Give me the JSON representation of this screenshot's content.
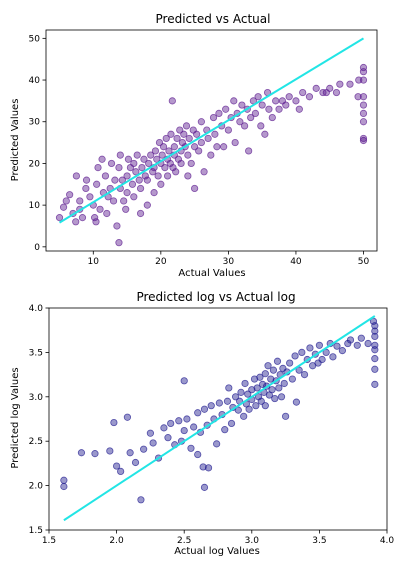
{
  "chart_data": [
    {
      "type": "scatter",
      "title": "Predicted vs Actual",
      "xlabel": "Actual Values",
      "ylabel": "Predicted Values",
      "xlim": [
        3,
        52
      ],
      "ylim": [
        -1,
        52
      ],
      "xticks": [
        10,
        20,
        30,
        40,
        50
      ],
      "yticks": [
        0,
        10,
        20,
        30,
        40,
        50
      ],
      "point_color": "#5b1a8f",
      "fit_color": "#22e5e5",
      "fit_line": {
        "x": [
          5,
          50
        ],
        "y": [
          5.8,
          50
        ]
      },
      "points": [
        [
          5,
          7
        ],
        [
          5.6,
          9.5
        ],
        [
          6,
          11
        ],
        [
          6.5,
          12.5
        ],
        [
          7,
          8
        ],
        [
          7.4,
          6
        ],
        [
          7.5,
          17
        ],
        [
          8,
          11
        ],
        [
          8,
          9
        ],
        [
          8.4,
          7
        ],
        [
          8.9,
          14
        ],
        [
          9,
          16
        ],
        [
          9.5,
          12
        ],
        [
          10,
          10
        ],
        [
          10.2,
          7
        ],
        [
          10.4,
          6
        ],
        [
          10.5,
          15
        ],
        [
          10.7,
          19
        ],
        [
          11,
          9
        ],
        [
          11.3,
          21
        ],
        [
          11.5,
          13
        ],
        [
          11.8,
          17
        ],
        [
          12,
          8
        ],
        [
          12.2,
          12
        ],
        [
          12.5,
          14
        ],
        [
          12.7,
          20
        ],
        [
          13,
          11
        ],
        [
          13.2,
          16
        ],
        [
          13.5,
          5
        ],
        [
          13.8,
          19
        ],
        [
          13.8,
          1
        ],
        [
          14,
          14
        ],
        [
          14,
          22
        ],
        [
          14.3,
          16
        ],
        [
          14.5,
          11
        ],
        [
          14.8,
          9
        ],
        [
          15,
          13
        ],
        [
          15,
          17
        ],
        [
          15.2,
          21
        ],
        [
          15.5,
          19
        ],
        [
          15.8,
          15
        ],
        [
          16,
          12
        ],
        [
          16,
          20
        ],
        [
          16.3,
          18
        ],
        [
          16.5,
          22
        ],
        [
          16.8,
          16
        ],
        [
          17,
          8
        ],
        [
          17,
          14
        ],
        [
          17.2,
          19
        ],
        [
          17.5,
          21
        ],
        [
          17.7,
          17
        ],
        [
          18,
          10
        ],
        [
          18,
          16
        ],
        [
          18.2,
          20
        ],
        [
          18.5,
          22
        ],
        [
          18.8,
          18
        ],
        [
          19,
          13
        ],
        [
          19,
          19
        ],
        [
          19.2,
          23
        ],
        [
          19.4,
          21
        ],
        [
          19.6,
          17
        ],
        [
          19.8,
          25
        ],
        [
          20,
          15
        ],
        [
          20,
          20
        ],
        [
          20.2,
          22
        ],
        [
          20.4,
          24
        ],
        [
          20.6,
          19
        ],
        [
          20.8,
          26
        ],
        [
          21,
          17
        ],
        [
          21,
          21
        ],
        [
          21.2,
          23
        ],
        [
          21.4,
          20
        ],
        [
          21.5,
          27
        ],
        [
          21.7,
          35
        ],
        [
          21.8,
          19
        ],
        [
          22,
          22
        ],
        [
          22,
          24
        ],
        [
          22.2,
          18
        ],
        [
          22.4,
          26
        ],
        [
          22.6,
          21
        ],
        [
          22.8,
          28
        ],
        [
          23,
          23
        ],
        [
          23,
          20
        ],
        [
          23.2,
          25
        ],
        [
          23.4,
          27
        ],
        [
          23.6,
          24
        ],
        [
          23.8,
          29
        ],
        [
          24,
          17
        ],
        [
          24,
          22
        ],
        [
          24.2,
          26
        ],
        [
          24.5,
          20
        ],
        [
          24.8,
          28
        ],
        [
          25,
          24
        ],
        [
          25,
          14
        ],
        [
          25.3,
          27
        ],
        [
          25.6,
          23
        ],
        [
          26,
          30
        ],
        [
          26,
          25
        ],
        [
          26.4,
          18
        ],
        [
          26.8,
          28
        ],
        [
          27,
          26
        ],
        [
          27.4,
          22
        ],
        [
          27.8,
          31
        ],
        [
          28,
          27
        ],
        [
          28.3,
          24
        ],
        [
          28.6,
          32
        ],
        [
          29,
          29
        ],
        [
          29.3,
          24
        ],
        [
          29.6,
          33
        ],
        [
          30,
          28
        ],
        [
          30.4,
          31
        ],
        [
          30.8,
          35
        ],
        [
          31,
          25
        ],
        [
          31.3,
          32
        ],
        [
          31.7,
          30
        ],
        [
          32,
          34
        ],
        [
          32.4,
          29
        ],
        [
          32.8,
          33
        ],
        [
          33,
          23
        ],
        [
          33.3,
          31
        ],
        [
          33.7,
          35
        ],
        [
          34,
          32
        ],
        [
          34.4,
          36
        ],
        [
          34.8,
          29
        ],
        [
          35,
          34
        ],
        [
          35.4,
          27
        ],
        [
          35.8,
          37
        ],
        [
          36,
          33
        ],
        [
          36.5,
          31
        ],
        [
          37,
          35
        ],
        [
          37.5,
          33
        ],
        [
          38,
          35
        ],
        [
          38.5,
          34
        ],
        [
          39,
          36
        ],
        [
          40,
          35
        ],
        [
          40.5,
          33
        ],
        [
          41,
          37
        ],
        [
          42,
          36
        ],
        [
          43,
          38
        ],
        [
          44,
          37
        ],
        [
          44.5,
          37
        ],
        [
          45,
          38
        ],
        [
          46,
          37
        ],
        [
          46.5,
          39
        ],
        [
          48,
          39
        ],
        [
          49.2,
          36
        ],
        [
          49.3,
          40
        ],
        [
          50,
          43
        ],
        [
          50,
          42
        ],
        [
          50,
          40
        ],
        [
          50,
          36
        ],
        [
          50,
          34
        ],
        [
          50,
          32
        ],
        [
          50,
          30
        ],
        [
          50,
          26
        ],
        [
          50,
          25.5
        ]
      ]
    },
    {
      "type": "scatter",
      "title": "Predicted log vs Actual log",
      "xlabel": "Actual log Values",
      "ylabel": "Predicted log Values",
      "xlim": [
        1.5,
        4.0
      ],
      "ylim": [
        1.5,
        4.0
      ],
      "xticks": [
        1.5,
        2.0,
        2.5,
        3.0,
        3.5,
        4.0
      ],
      "yticks": [
        1.5,
        2.0,
        2.5,
        3.0,
        3.5,
        4.0
      ],
      "point_color": "#1f1a8f",
      "fit_color": "#22e5e5",
      "fit_line": {
        "x": [
          1.61,
          3.91
        ],
        "y": [
          1.61,
          3.91
        ]
      },
      "points": [
        [
          1.61,
          2.06
        ],
        [
          1.61,
          1.99
        ],
        [
          1.74,
          2.37
        ],
        [
          1.84,
          2.36
        ],
        [
          1.95,
          2.39
        ],
        [
          1.98,
          2.71
        ],
        [
          2.0,
          2.22
        ],
        [
          2.03,
          2.16
        ],
        [
          2.08,
          2.77
        ],
        [
          2.1,
          2.37
        ],
        [
          2.14,
          2.26
        ],
        [
          2.18,
          1.84
        ],
        [
          2.2,
          2.41
        ],
        [
          2.25,
          2.59
        ],
        [
          2.27,
          2.48
        ],
        [
          2.31,
          2.31
        ],
        [
          2.35,
          2.65
        ],
        [
          2.38,
          2.54
        ],
        [
          2.4,
          2.7
        ],
        [
          2.43,
          2.46
        ],
        [
          2.46,
          2.73
        ],
        [
          2.48,
          2.5
        ],
        [
          2.5,
          2.62
        ],
        [
          2.5,
          3.18
        ],
        [
          2.52,
          2.75
        ],
        [
          2.55,
          2.42
        ],
        [
          2.57,
          2.66
        ],
        [
          2.6,
          2.82
        ],
        [
          2.6,
          2.35
        ],
        [
          2.62,
          2.6
        ],
        [
          2.64,
          2.21
        ],
        [
          2.65,
          1.98
        ],
        [
          2.65,
          2.86
        ],
        [
          2.67,
          2.68
        ],
        [
          2.68,
          2.2
        ],
        [
          2.7,
          2.9
        ],
        [
          2.72,
          2.75
        ],
        [
          2.74,
          2.47
        ],
        [
          2.76,
          2.93
        ],
        [
          2.78,
          2.8
        ],
        [
          2.8,
          2.63
        ],
        [
          2.82,
          2.95
        ],
        [
          2.83,
          3.1
        ],
        [
          2.85,
          2.7
        ],
        [
          2.86,
          2.88
        ],
        [
          2.88,
          3.0
        ],
        [
          2.9,
          2.85
        ],
        [
          2.91,
          2.95
        ],
        [
          2.92,
          3.05
        ],
        [
          2.94,
          2.78
        ],
        [
          2.95,
          3.15
        ],
        [
          2.96,
          2.92
        ],
        [
          2.97,
          3.03
        ],
        [
          2.98,
          2.86
        ],
        [
          3.0,
          3.08
        ],
        [
          3.0,
          2.97
        ],
        [
          3.02,
          3.2
        ],
        [
          3.03,
          2.9
        ],
        [
          3.04,
          3.1
        ],
        [
          3.05,
          3.0
        ],
        [
          3.06,
          3.22
        ],
        [
          3.07,
          2.95
        ],
        [
          3.08,
          3.14
        ],
        [
          3.09,
          3.05
        ],
        [
          3.1,
          3.26
        ],
        [
          3.1,
          2.9
        ],
        [
          3.11,
          3.12
        ],
        [
          3.12,
          3.35
        ],
        [
          3.13,
          3.02
        ],
        [
          3.14,
          3.2
        ],
        [
          3.15,
          3.08
        ],
        [
          3.16,
          3.3
        ],
        [
          3.17,
          2.98
        ],
        [
          3.18,
          3.18
        ],
        [
          3.19,
          3.4
        ],
        [
          3.2,
          3.1
        ],
        [
          3.21,
          3.25
        ],
        [
          3.22,
          3.0
        ],
        [
          3.23,
          3.32
        ],
        [
          3.24,
          3.15
        ],
        [
          3.25,
          2.78
        ],
        [
          3.26,
          3.28
        ],
        [
          3.28,
          3.38
        ],
        [
          3.3,
          3.2
        ],
        [
          3.32,
          3.46
        ],
        [
          3.33,
          2.94
        ],
        [
          3.35,
          3.3
        ],
        [
          3.37,
          3.5
        ],
        [
          3.39,
          3.25
        ],
        [
          3.41,
          3.42
        ],
        [
          3.43,
          3.55
        ],
        [
          3.45,
          3.35
        ],
        [
          3.47,
          3.48
        ],
        [
          3.49,
          3.38
        ],
        [
          3.5,
          3.58
        ],
        [
          3.52,
          3.42
        ],
        [
          3.55,
          3.5
        ],
        [
          3.58,
          3.6
        ],
        [
          3.6,
          3.45
        ],
        [
          3.63,
          3.57
        ],
        [
          3.67,
          3.52
        ],
        [
          3.71,
          3.6
        ],
        [
          3.73,
          3.64
        ],
        [
          3.78,
          3.58
        ],
        [
          3.81,
          3.66
        ],
        [
          3.86,
          3.6
        ],
        [
          3.9,
          3.85
        ],
        [
          3.91,
          3.8
        ],
        [
          3.91,
          3.74
        ],
        [
          3.91,
          3.68
        ],
        [
          3.91,
          3.58
        ],
        [
          3.91,
          3.53
        ],
        [
          3.91,
          3.43
        ],
        [
          3.91,
          3.31
        ],
        [
          3.91,
          3.14
        ]
      ]
    }
  ]
}
